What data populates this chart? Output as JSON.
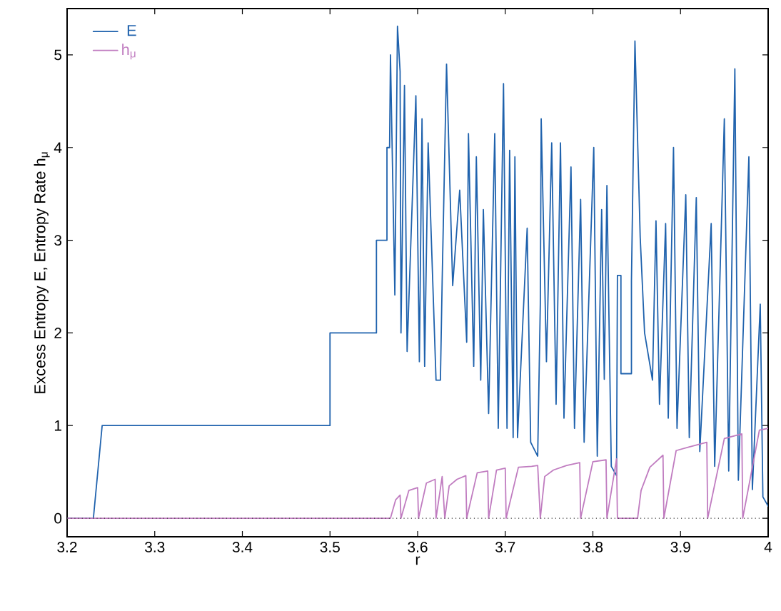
{
  "chart_data": {
    "type": "line",
    "xlabel": "r",
    "ylabel": "Excess Entropy E, Entropy Rate h$_{μ}$",
    "xlim": [
      3.2,
      4
    ],
    "ylim": [
      -0.2,
      5.5
    ],
    "xticks": [
      3.2,
      3.3,
      3.4,
      3.5,
      3.6,
      3.7,
      3.8,
      3.9,
      4
    ],
    "yticks": [
      0,
      1,
      2,
      3,
      4,
      5
    ],
    "legend": "top left",
    "ref_lines": [
      {
        "axis": "y",
        "value": 0,
        "line_style": "dotted",
        "color": "#333333"
      }
    ],
    "series": [
      {
        "name": "E",
        "color": "#1f62ad",
        "x": [
          3.2,
          3.23,
          3.24,
          3.5,
          3.5,
          3.553,
          3.553,
          3.565,
          3.565,
          3.568,
          3.569,
          3.574,
          3.577,
          3.58,
          3.581,
          3.585,
          3.588,
          3.598,
          3.602,
          3.605,
          3.608,
          3.612,
          3.621,
          3.626,
          3.628,
          3.633,
          3.64,
          3.648,
          3.656,
          3.658,
          3.664,
          3.667,
          3.672,
          3.675,
          3.681,
          3.688,
          3.692,
          3.698,
          3.702,
          3.705,
          3.709,
          3.711,
          3.714,
          3.725,
          3.729,
          3.737,
          3.74,
          3.741,
          3.747,
          3.753,
          3.758,
          3.763,
          3.767,
          3.775,
          3.779,
          3.786,
          3.79,
          3.801,
          3.805,
          3.81,
          3.813,
          3.816,
          3.821,
          3.827,
          3.828,
          3.832,
          3.832,
          3.844,
          3.844,
          3.848,
          3.854,
          3.859,
          3.868,
          3.872,
          3.876,
          3.883,
          3.886,
          3.892,
          3.896,
          3.906,
          3.91,
          3.918,
          3.922,
          3.935,
          3.939,
          3.95,
          3.955,
          3.962,
          3.966,
          3.978,
          3.982,
          3.991,
          3.994,
          4.0
        ],
        "values": [
          0,
          0,
          1,
          1,
          2,
          2,
          3,
          3,
          4,
          4,
          5.0,
          2.41,
          5.31,
          4.82,
          2.0,
          4.67,
          1.8,
          4.56,
          1.69,
          4.31,
          1.64,
          4.05,
          1.49,
          1.49,
          2.56,
          4.9,
          2.51,
          3.54,
          1.9,
          4.15,
          1.64,
          3.9,
          1.49,
          3.33,
          1.13,
          4.15,
          0.97,
          4.69,
          0.97,
          3.97,
          0.87,
          3.9,
          0.87,
          3.13,
          0.82,
          0.67,
          2.31,
          4.31,
          1.69,
          4.05,
          1.23,
          4.05,
          1.08,
          3.79,
          0.97,
          3.44,
          0.82,
          4.0,
          0.67,
          3.33,
          1.5,
          3.59,
          0.56,
          0.46,
          2.62,
          2.62,
          1.56,
          1.56,
          2.56,
          5.15,
          3.03,
          2.0,
          1.49,
          3.21,
          1.23,
          3.18,
          1.08,
          4.0,
          0.97,
          3.49,
          0.87,
          3.46,
          0.72,
          3.18,
          0.56,
          4.31,
          0.51,
          4.85,
          0.41,
          3.9,
          0.31,
          2.31,
          0.23,
          0.13
        ]
      },
      {
        "name": "h$_{μ}$",
        "color": "#c07cc0",
        "x": [
          3.2,
          3.569,
          3.575,
          3.58,
          3.581,
          3.59,
          3.6,
          3.601,
          3.61,
          3.62,
          3.621,
          3.628,
          3.631,
          3.636,
          3.645,
          3.655,
          3.656,
          3.668,
          3.68,
          3.681,
          3.69,
          3.7,
          3.701,
          3.715,
          3.73,
          3.737,
          3.74,
          3.745,
          3.755,
          3.77,
          3.785,
          3.786,
          3.8,
          3.815,
          3.816,
          3.827,
          3.828,
          3.851,
          3.855,
          3.865,
          3.88,
          3.881,
          3.895,
          3.91,
          3.93,
          3.931,
          3.95,
          3.97,
          3.971,
          3.99,
          4.0
        ],
        "values": [
          0,
          0,
          0.2,
          0.25,
          0,
          0.3,
          0.33,
          0,
          0.38,
          0.42,
          0,
          0.45,
          0,
          0.35,
          0.42,
          0.46,
          0,
          0.49,
          0.51,
          0,
          0.52,
          0.54,
          0,
          0.55,
          0.56,
          0.57,
          0,
          0.45,
          0.52,
          0.57,
          0.6,
          0,
          0.61,
          0.63,
          0,
          0.64,
          0,
          0,
          0.3,
          0.55,
          0.68,
          0,
          0.73,
          0.77,
          0.82,
          0,
          0.86,
          0.91,
          0,
          0.95,
          0.97
        ]
      }
    ]
  }
}
